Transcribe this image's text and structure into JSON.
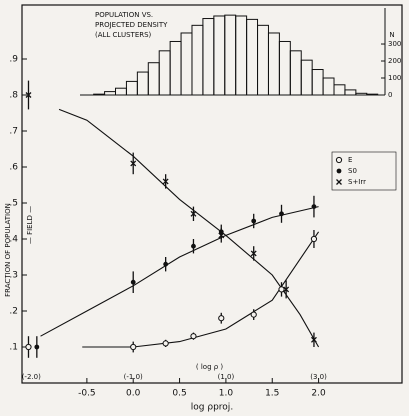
{
  "chart_data": [
    {
      "type": "scatter",
      "xlabel": "log ρproj.",
      "ylabel": "FRACTION OF POPULATION",
      "field_label": "— FIELD —",
      "xlim": [
        -1.2,
        2.9
      ],
      "ylim": [
        0,
        1.05
      ],
      "xticks": [
        {
          "value": -0.5,
          "label": "-0.5"
        },
        {
          "value": 0,
          "label": "0.0"
        },
        {
          "value": 0.5,
          "label": "0.5"
        },
        {
          "value": 1,
          "label": "1.0"
        },
        {
          "value": 1.5,
          "label": "1.5"
        },
        {
          "value": 2,
          "label": "2.0"
        }
      ],
      "yticks": [
        {
          "value": 0.1,
          "label": ".1"
        },
        {
          "value": 0.2,
          "label": ".2"
        },
        {
          "value": 0.3,
          "label": ".3"
        },
        {
          "value": 0.4,
          "label": ".4"
        },
        {
          "value": 0.5,
          "label": ".5"
        },
        {
          "value": 0.6,
          "label": ".6"
        },
        {
          "value": 0.7,
          "label": ".7"
        },
        {
          "value": 0.8,
          "label": ".8"
        },
        {
          "value": 0.9,
          "label": ".9"
        }
      ],
      "x2label": "( log ρ )",
      "x2ticks": [
        {
          "value": -1.1,
          "label": "(-2.0)"
        },
        {
          "value": 0,
          "label": "(-1.0)"
        },
        {
          "value": 1,
          "label": "(1.0)"
        },
        {
          "value": 2,
          "label": "(3.0)"
        }
      ],
      "legend": "right",
      "series": [
        {
          "name": "E",
          "marker": "circle-open",
          "color": "#111",
          "x": [
            -1.13,
            0.0,
            0.35,
            0.65,
            0.95,
            1.3,
            1.6,
            1.95
          ],
          "values": [
            0.1,
            0.1,
            0.11,
            0.13,
            0.18,
            0.19,
            0.26,
            0.4
          ],
          "errors": [
            0.03,
            0.015,
            0.01,
            0.01,
            0.015,
            0.015,
            0.02,
            0.025
          ]
        },
        {
          "name": "S0",
          "marker": "dot",
          "color": "#111",
          "x": [
            -1.04,
            0.0,
            0.35,
            0.65,
            0.95,
            1.3,
            1.6,
            1.95
          ],
          "values": [
            0.1,
            0.28,
            0.33,
            0.38,
            0.42,
            0.45,
            0.47,
            0.49
          ],
          "errors": [
            0.03,
            0.03,
            0.02,
            0.02,
            0.02,
            0.02,
            0.025,
            0.03
          ]
        },
        {
          "name": "S+Irr",
          "marker": "cross",
          "color": "#111",
          "x": [
            -1.13,
            0.0,
            0.35,
            0.65,
            0.95,
            1.3,
            1.65,
            1.95
          ],
          "values": [
            0.8,
            0.61,
            0.56,
            0.47,
            0.41,
            0.36,
            0.26,
            0.12
          ],
          "errors": [
            0.04,
            0.03,
            0.02,
            0.02,
            0.02,
            0.02,
            0.025,
            0.02
          ]
        }
      ],
      "curves": [
        {
          "x": [
            -0.55,
            0.0,
            0.5,
            1.0,
            1.5,
            2.0
          ],
          "values": [
            0.1,
            0.1,
            0.115,
            0.15,
            0.23,
            0.42
          ]
        },
        {
          "x": [
            -1.0,
            -0.5,
            0.0,
            0.5,
            1.0,
            1.5,
            2.0
          ],
          "values": [
            0.13,
            0.2,
            0.27,
            0.35,
            0.41,
            0.46,
            0.49
          ]
        },
        {
          "x": [
            -0.8,
            -0.5,
            0.0,
            0.5,
            1.0,
            1.5,
            1.8,
            2.0
          ],
          "values": [
            0.76,
            0.73,
            0.63,
            0.51,
            0.41,
            0.3,
            0.19,
            0.1
          ]
        }
      ]
    },
    {
      "type": "histogram",
      "title": [
        "POPULATION VS.",
        "PROJECTED DENSITY",
        "(ALL CLUSTERS)"
      ],
      "ylabel": "N",
      "xlim": [
        -0.6,
        2.75
      ],
      "ylim": [
        0,
        512
      ],
      "yticks": [
        0,
        100,
        200,
        300
      ],
      "bins": [
        -0.45,
        -0.33,
        -0.21,
        -0.09,
        0.03,
        0.15,
        0.27,
        0.39,
        0.51,
        0.63,
        0.75,
        0.87,
        0.99,
        1.11,
        1.23,
        1.35,
        1.47,
        1.59,
        1.71,
        1.83,
        1.95,
        2.07,
        2.19,
        2.31,
        2.43,
        2.55,
        2.67
      ],
      "values": [
        5,
        20,
        40,
        80,
        135,
        190,
        260,
        315,
        365,
        410,
        450,
        465,
        470,
        465,
        445,
        410,
        365,
        315,
        260,
        205,
        150,
        100,
        60,
        30,
        10,
        5
      ],
      "color": "#111"
    }
  ]
}
